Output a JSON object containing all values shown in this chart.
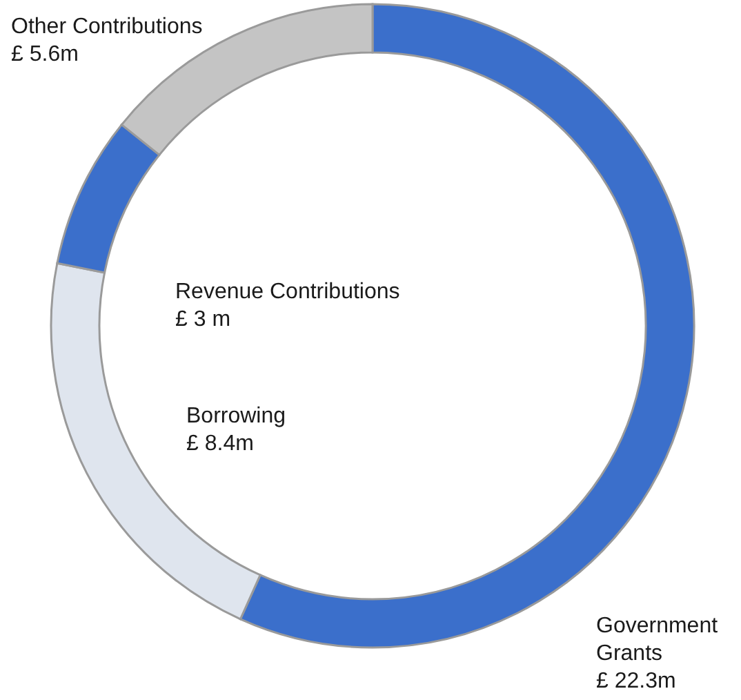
{
  "chart_data": {
    "type": "donut",
    "categories": [
      "Government Grants",
      "Borrowing",
      "Revenue Contributions",
      "Other Contributions"
    ],
    "values": [
      22.3,
      8.4,
      3,
      5.6
    ],
    "value_labels": [
      "£ 22.3m",
      "£ 8.4m",
      "£ 3 m",
      "£ 5.6m"
    ],
    "colors": [
      "#3b6fcb",
      "#dfe5ee",
      "#3b6fcb",
      "#c4c4c4"
    ]
  }
}
